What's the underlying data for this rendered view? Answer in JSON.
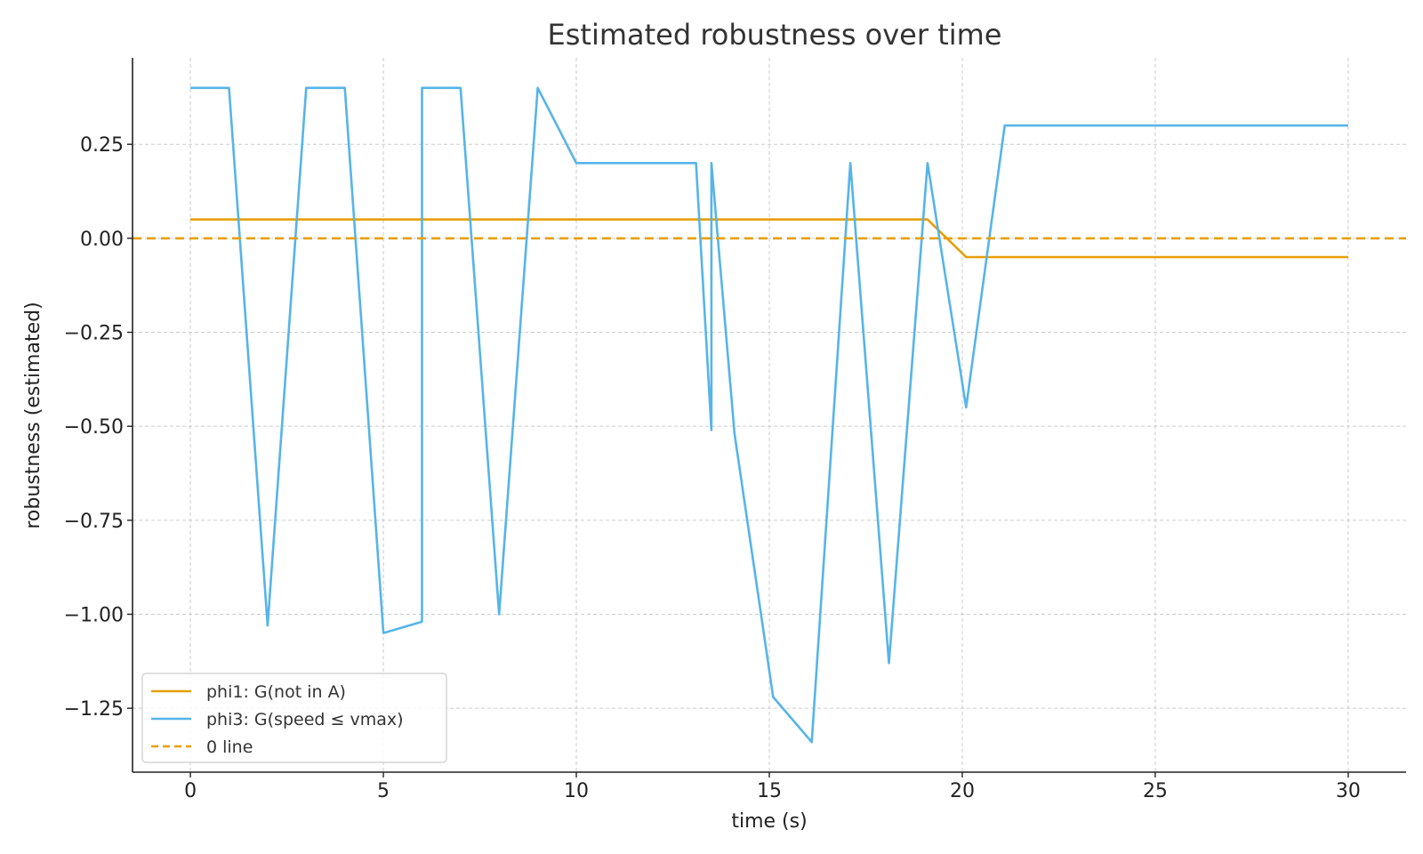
{
  "chart_data": {
    "type": "line",
    "title": "Estimated robustness over time",
    "xlabel": "time (s)",
    "ylabel": "robustness (estimated)",
    "xlim": [
      -1.5,
      31.5
    ],
    "ylim": [
      -1.42,
      0.48
    ],
    "xticks": [
      0,
      5,
      10,
      15,
      20,
      25,
      30
    ],
    "xtick_labels": [
      "0",
      "5",
      "10",
      "15",
      "20",
      "25",
      "30"
    ],
    "yticks": [
      0.25,
      0.0,
      -0.25,
      -0.5,
      -0.75,
      -1.0,
      -1.25
    ],
    "ytick_labels": [
      "0.25",
      "0.00",
      "−0.25",
      "−0.50",
      "−0.75",
      "−1.00",
      "−1.25"
    ],
    "grid": true,
    "legend_position": "lower-left",
    "series": [
      {
        "name": "phi1: G(not in A)",
        "color": "#E69F00",
        "style": "solid",
        "x": [
          0,
          19.1,
          20.1,
          30
        ],
        "y": [
          0.05,
          0.05,
          -0.05,
          -0.05
        ]
      },
      {
        "name": "phi3: G(speed ≤ vmax)",
        "color": "#56B4E9",
        "style": "solid",
        "x": [
          0,
          1.0,
          2.0,
          3.0,
          4.0,
          5.0,
          6.0,
          6.0,
          7.0,
          8.0,
          9.0,
          10.0,
          13.1,
          13.5,
          13.5,
          14.1,
          15.1,
          16.1,
          17.1,
          18.1,
          19.1,
          20.1,
          21.1,
          22.1,
          23.1,
          30.0
        ],
        "y": [
          0.4,
          0.4,
          -1.03,
          0.4,
          0.4,
          -1.05,
          -1.02,
          0.4,
          0.4,
          -1.0,
          0.4,
          0.2,
          0.2,
          -0.51,
          0.2,
          -0.52,
          -1.22,
          -1.34,
          0.2,
          -1.13,
          0.2,
          -0.45,
          0.3,
          0.3,
          0.3,
          0.3
        ]
      },
      {
        "name": "0 line",
        "color": "#E69F00",
        "style": "dashed",
        "x": [
          -1.5,
          31.5
        ],
        "y": [
          0.0,
          0.0
        ]
      }
    ]
  }
}
